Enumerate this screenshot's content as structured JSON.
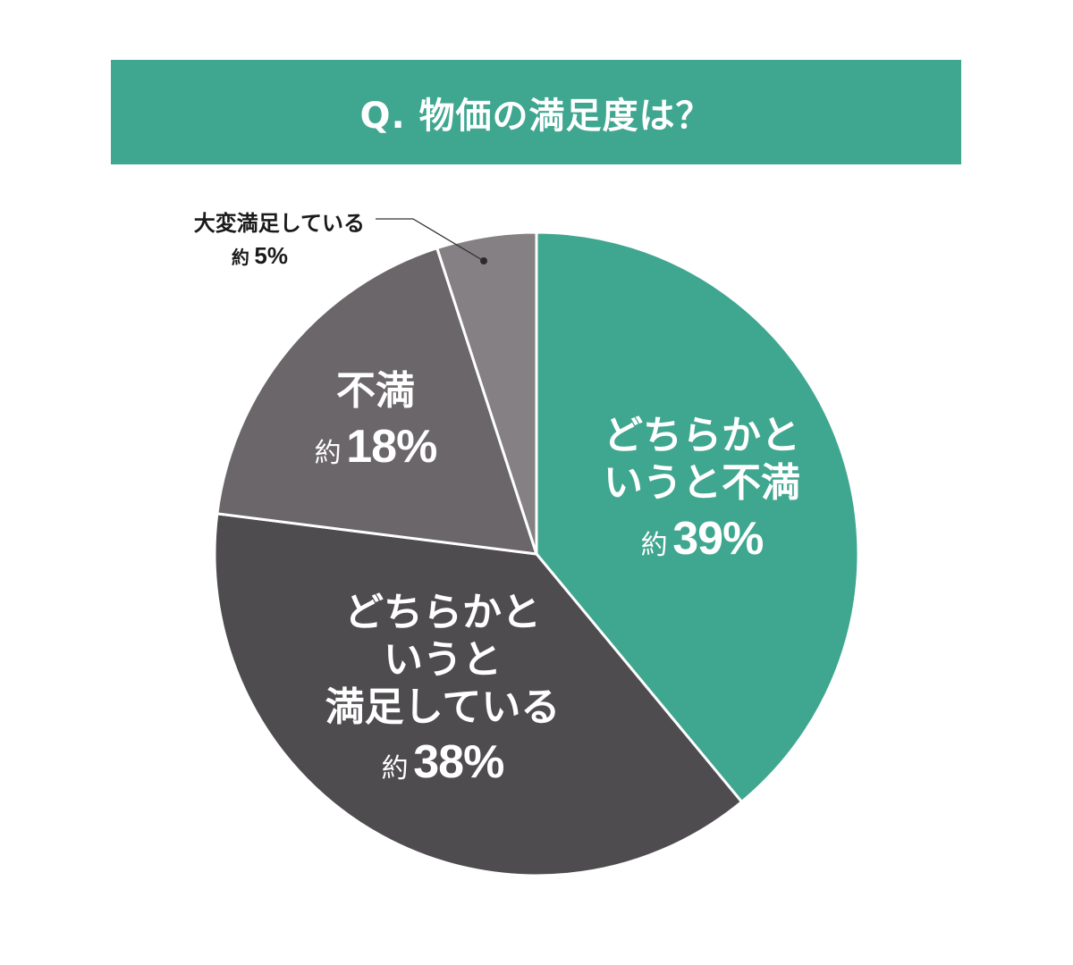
{
  "title": "Q. 物価の満足度は？",
  "colors": {
    "title_bg": "#3fa690",
    "slice_dissatisfied_somewhat": "#3fa690",
    "slice_satisfied_somewhat": "#4e4c4f",
    "slice_dissatisfied": "#6a6669",
    "slice_very_satisfied": "#848083"
  },
  "labels": {
    "very_satisfied": {
      "category": "大変満足している",
      "approx": "約",
      "value": "5%"
    },
    "dissatisfied_somewhat": {
      "line1": "どちらかと",
      "line2": "いうと不満",
      "approx": "約",
      "value": "39%"
    },
    "satisfied_somewhat": {
      "line1": "どちらかと",
      "line2": "いうと",
      "line3": "満足している",
      "approx": "約",
      "value": "38%"
    },
    "dissatisfied": {
      "category": "不満",
      "approx": "約",
      "value": "18%"
    }
  },
  "chart_data": {
    "type": "pie",
    "title": "Q. 物価の満足度は？",
    "start_angle": "12 o'clock",
    "direction": "clockwise",
    "categories": [
      "どちらかというと不満",
      "どちらかというと満足している",
      "不満",
      "大変満足している"
    ],
    "values": [
      39,
      38,
      18,
      5
    ],
    "unit": "%",
    "value_prefix": "約",
    "colors": [
      "#3fa690",
      "#4e4c4f",
      "#6a6669",
      "#848083"
    ],
    "legend": "none (direct labels)"
  }
}
